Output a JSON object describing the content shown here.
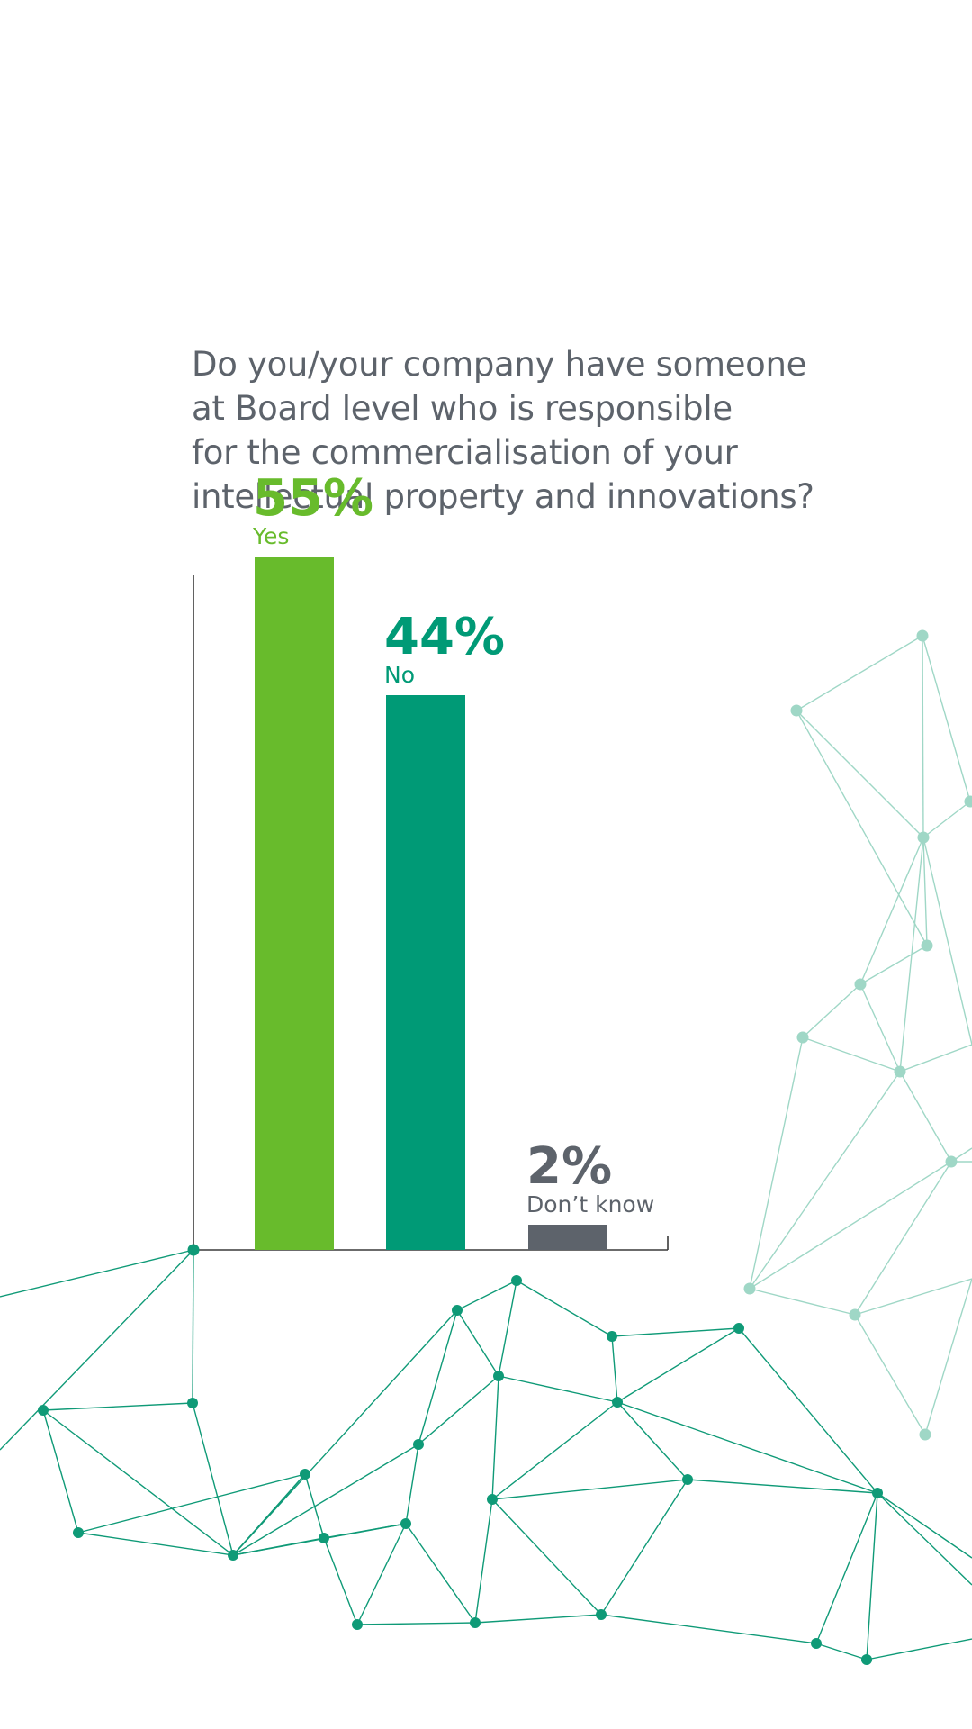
{
  "question": {
    "lines": [
      "Do you/your company have someone",
      "at Board level who is responsible",
      "for the commercialisation of your",
      "intellectual property and innovations?"
    ]
  },
  "chart_data": {
    "type": "bar",
    "categories": [
      "Yes",
      "No",
      "Don’t know"
    ],
    "values": [
      55,
      44,
      2
    ],
    "value_labels": [
      "55%",
      "44%",
      "2%"
    ],
    "colors": [
      "#68bb2c",
      "#009a76",
      "#5d636b"
    ],
    "ylim": [
      0,
      60
    ],
    "grid": false,
    "legend": "none",
    "axis_color": "#3a3a3a"
  },
  "decoration": {
    "network_color_dark": "#0f9a77",
    "network_color_light": "#9fd7c6",
    "network_icon": "network-graphic"
  }
}
